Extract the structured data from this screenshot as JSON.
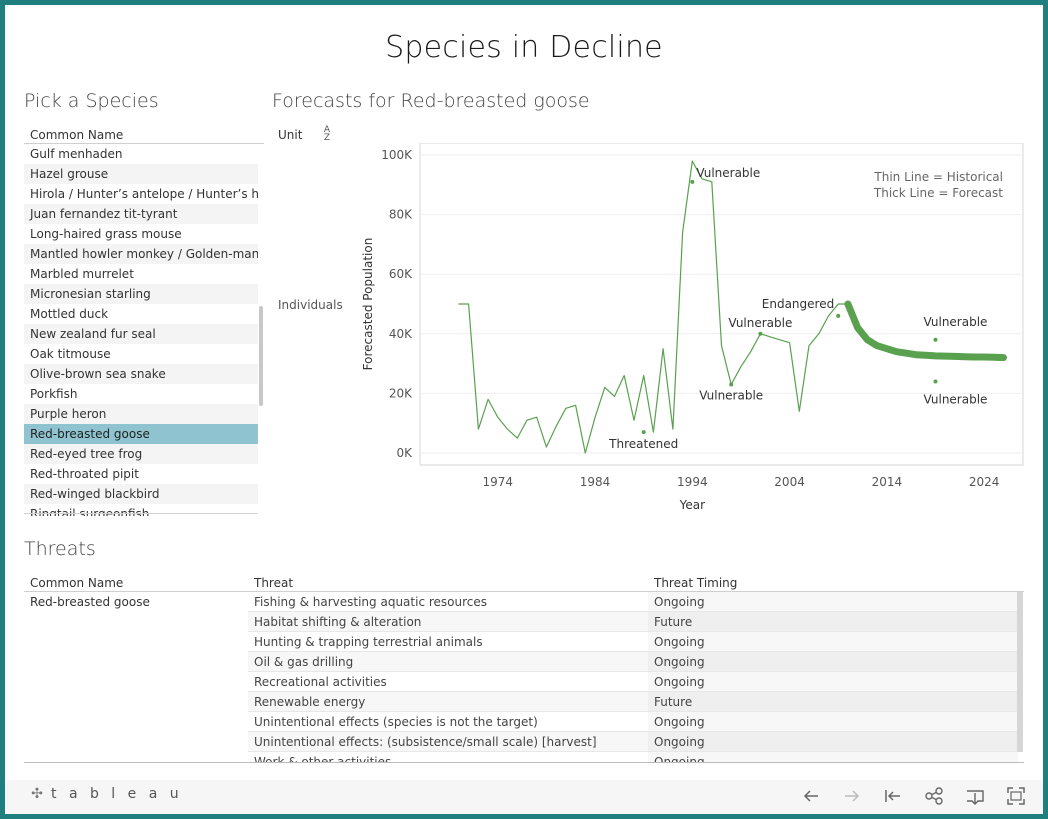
{
  "dashboard": {
    "title": "Species in Decline"
  },
  "species_panel": {
    "title": "Pick a Species",
    "column_header": "Common Name",
    "items": [
      "Gulf menhaden",
      "Hazel grouse",
      "Hirola / Hunter’s antelope / Hunter’s har",
      "Juan fernandez tit-tyrant",
      "Long-haired grass mouse",
      "Mantled howler monkey / Golden-mantle",
      "Marbled murrelet",
      "Micronesian starling",
      "Mottled duck",
      "New zealand fur seal",
      "Oak titmouse",
      "Olive-brown sea snake",
      "Porkfish",
      "Purple heron",
      "Red-breasted goose",
      "Red-eyed tree frog",
      "Red-throated pipit",
      "Red-winged blackbird",
      "Ringtail surgeonfish"
    ],
    "selected": "Red-breasted goose"
  },
  "forecast": {
    "title": "Forecasts for Red-breasted goose",
    "unit_header": "Unit",
    "row_label": "Individuals"
  },
  "chart_data": {
    "type": "line",
    "xlabel": "Year",
    "ylabel": "Forecasted Population",
    "x_ticks": [
      "1974",
      "1984",
      "1994",
      "2004",
      "2014",
      "2024"
    ],
    "y_ticks": [
      "0K",
      "20K",
      "40K",
      "60K",
      "80K",
      "100K"
    ],
    "xlim": [
      1966,
      2028
    ],
    "ylim": [
      0,
      100000
    ],
    "legend_text": [
      "Thin Line = Historical",
      "Thick Line = Forecast"
    ],
    "line_color": "#59a14f",
    "series": [
      {
        "name": "Historical",
        "x": [
          1970,
          1971,
          1972,
          1973,
          1974,
          1975,
          1976,
          1977,
          1978,
          1979,
          1980,
          1981,
          1982,
          1983,
          1984,
          1985,
          1986,
          1987,
          1988,
          1989,
          1990,
          1991,
          1992,
          1993,
          1994,
          1995,
          1996,
          1997,
          1998,
          1999,
          2000,
          2001,
          2002,
          2003,
          2004,
          2005,
          2006,
          2007,
          2008,
          2009,
          2010
        ],
        "y": [
          50000,
          50000,
          8000,
          18000,
          12000,
          8000,
          5000,
          11000,
          12000,
          2000,
          9000,
          15000,
          16000,
          0,
          12000,
          22000,
          19000,
          26000,
          11000,
          26000,
          7000,
          35000,
          8000,
          74000,
          98000,
          92000,
          91000,
          36000,
          23000,
          29000,
          34000,
          40000,
          39000,
          38000,
          37000,
          14000,
          36000,
          40000,
          46000,
          50000,
          50000
        ]
      },
      {
        "name": "Forecast",
        "x": [
          2010,
          2011,
          2012,
          2013,
          2014,
          2015,
          2016,
          2017,
          2018,
          2019,
          2020,
          2021,
          2022,
          2023,
          2024,
          2025,
          2026
        ],
        "y": [
          50000,
          42000,
          38000,
          36000,
          35000,
          34000,
          33500,
          33000,
          32800,
          32600,
          32500,
          32400,
          32300,
          32200,
          32200,
          32100,
          32000
        ]
      }
    ],
    "annotations": [
      {
        "x": 1994,
        "y": 91000,
        "label": "Vulnerable"
      },
      {
        "x": 1989,
        "y": 7000,
        "label": "Threatened"
      },
      {
        "x": 1998,
        "y": 23000,
        "label": "Vulnerable"
      },
      {
        "x": 2001,
        "y": 40000,
        "label": "Vulnerable"
      },
      {
        "x": 2009,
        "y": 46000,
        "label": "Endangered"
      },
      {
        "x": 2019,
        "y": 38000,
        "label": "Vulnerable"
      },
      {
        "x": 2019,
        "y": 24000,
        "label": "Vulnerable"
      }
    ]
  },
  "threats": {
    "title": "Threats",
    "headers": {
      "common_name": "Common Name",
      "threat": "Threat",
      "timing": "Threat Timing"
    },
    "species": "Red-breasted goose",
    "rows": [
      {
        "threat": "Fishing & harvesting aquatic resources",
        "timing": "Ongoing"
      },
      {
        "threat": "Habitat shifting & alteration",
        "timing": "Future"
      },
      {
        "threat": "Hunting & trapping terrestrial animals",
        "timing": "Ongoing"
      },
      {
        "threat": "Oil & gas drilling",
        "timing": "Ongoing"
      },
      {
        "threat": "Recreational activities",
        "timing": "Ongoing"
      },
      {
        "threat": "Renewable energy",
        "timing": "Future"
      },
      {
        "threat": "Unintentional effects (species is not the target)",
        "timing": "Ongoing"
      },
      {
        "threat": "Unintentional effects: (subsistence/small scale) [harvest]",
        "timing": "Ongoing"
      },
      {
        "threat": "Work & other activities",
        "timing": "Ongoing"
      }
    ]
  },
  "footer": {
    "logo_text": "t a b l e a u",
    "tools": [
      "undo-icon",
      "redo-icon",
      "revert-icon",
      "share-icon",
      "download-icon",
      "fullscreen-icon"
    ]
  }
}
